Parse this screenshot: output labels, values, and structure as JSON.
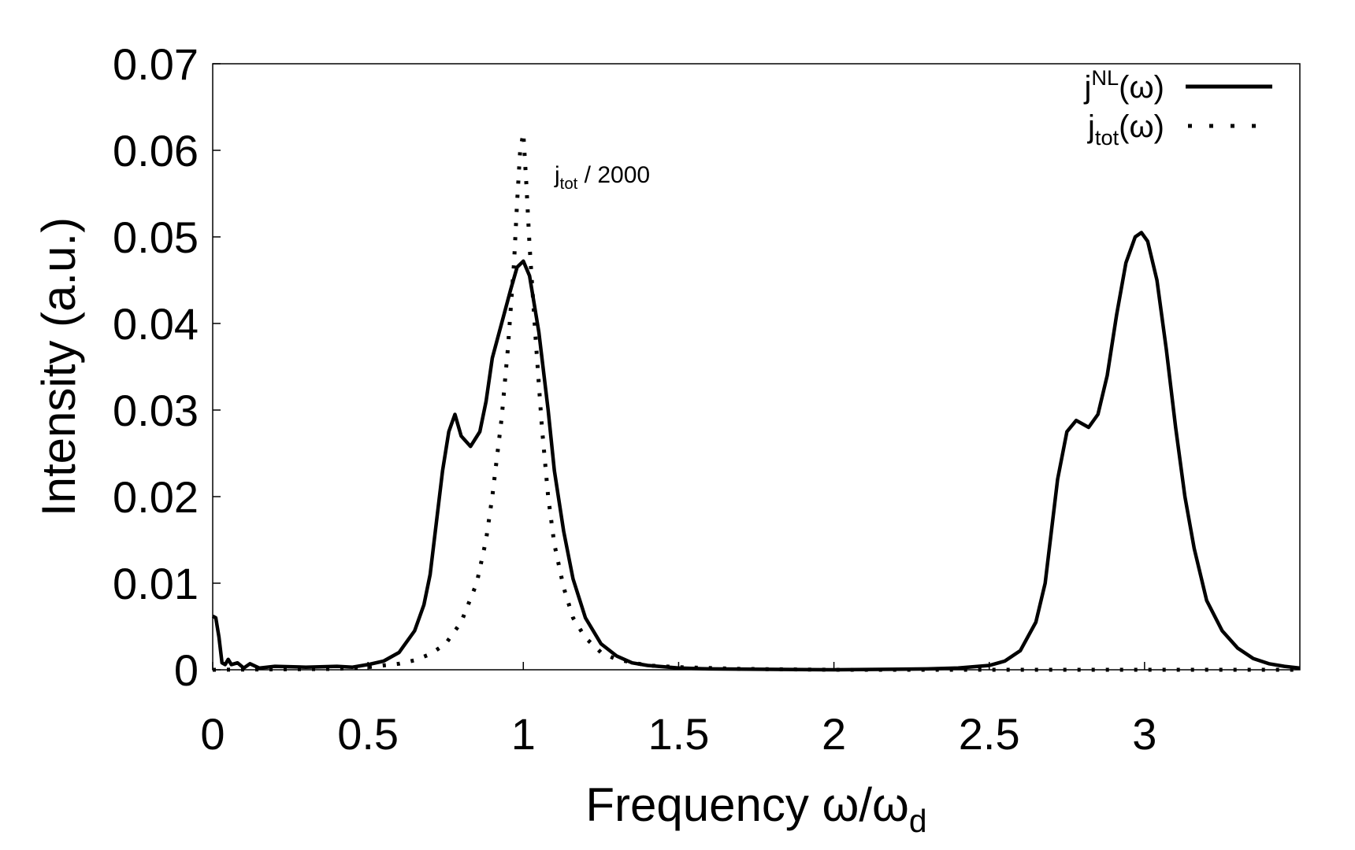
{
  "chart_data": {
    "type": "line",
    "xlabel": {
      "main": "Frequency ω/ω",
      "sub": "d"
    },
    "ylabel": "Intensity (a.u.)",
    "xlim": [
      0,
      3.5
    ],
    "ylim": [
      0,
      0.07
    ],
    "xticks": [
      0,
      0.5,
      1,
      1.5,
      2,
      2.5,
      3
    ],
    "xtick_labels": [
      "0",
      "0.5",
      "1",
      "1.5",
      "2",
      "2.5",
      "3"
    ],
    "yticks": [
      0,
      0.01,
      0.02,
      0.03,
      0.04,
      0.05,
      0.06,
      0.07
    ],
    "ytick_labels": [
      "0",
      "0.01",
      "0.02",
      "0.03",
      "0.04",
      "0.05",
      "0.06",
      "0.07"
    ],
    "grid": false,
    "legend_position": "top-right",
    "annotation": {
      "main": "j",
      "sub": "tot",
      "rest": " / 2000"
    },
    "series": [
      {
        "legend": {
          "main": "j",
          "sup": "NL",
          "rest": "(ω)"
        },
        "style": "solid",
        "color": "#000000",
        "points": [
          [
            0,
            0.0062
          ],
          [
            0.01,
            0.006
          ],
          [
            0.02,
            0.0038
          ],
          [
            0.03,
            0.0008
          ],
          [
            0.04,
            0.0006
          ],
          [
            0.05,
            0.0012
          ],
          [
            0.06,
            0.0006
          ],
          [
            0.08,
            0.0008
          ],
          [
            0.1,
            0.0002
          ],
          [
            0.12,
            0.0007
          ],
          [
            0.15,
            0.0002
          ],
          [
            0.2,
            0.0004
          ],
          [
            0.3,
            0.0003
          ],
          [
            0.4,
            0.0004
          ],
          [
            0.45,
            0.0003
          ],
          [
            0.5,
            0.0006
          ],
          [
            0.55,
            0.001
          ],
          [
            0.6,
            0.002
          ],
          [
            0.65,
            0.0045
          ],
          [
            0.68,
            0.0075
          ],
          [
            0.7,
            0.011
          ],
          [
            0.72,
            0.017
          ],
          [
            0.74,
            0.023
          ],
          [
            0.76,
            0.0275
          ],
          [
            0.78,
            0.0295
          ],
          [
            0.8,
            0.027
          ],
          [
            0.83,
            0.0258
          ],
          [
            0.86,
            0.0275
          ],
          [
            0.88,
            0.031
          ],
          [
            0.9,
            0.036
          ],
          [
            0.93,
            0.04
          ],
          [
            0.96,
            0.044
          ],
          [
            0.98,
            0.0465
          ],
          [
            1.0,
            0.0472
          ],
          [
            1.02,
            0.0455
          ],
          [
            1.05,
            0.039
          ],
          [
            1.08,
            0.03
          ],
          [
            1.1,
            0.023
          ],
          [
            1.13,
            0.016
          ],
          [
            1.16,
            0.0105
          ],
          [
            1.2,
            0.006
          ],
          [
            1.25,
            0.003
          ],
          [
            1.3,
            0.0016
          ],
          [
            1.35,
            0.0008
          ],
          [
            1.4,
            0.0005
          ],
          [
            1.5,
            0.0002
          ],
          [
            1.6,
            0.0001
          ],
          [
            2.0,
            0.0
          ],
          [
            2.3,
            0.0001
          ],
          [
            2.4,
            0.0002
          ],
          [
            2.5,
            0.0005
          ],
          [
            2.55,
            0.001
          ],
          [
            2.6,
            0.0022
          ],
          [
            2.65,
            0.0055
          ],
          [
            2.68,
            0.01
          ],
          [
            2.7,
            0.016
          ],
          [
            2.72,
            0.022
          ],
          [
            2.75,
            0.0275
          ],
          [
            2.78,
            0.0288
          ],
          [
            2.82,
            0.028
          ],
          [
            2.85,
            0.0295
          ],
          [
            2.88,
            0.034
          ],
          [
            2.91,
            0.041
          ],
          [
            2.94,
            0.047
          ],
          [
            2.97,
            0.05
          ],
          [
            2.99,
            0.0505
          ],
          [
            3.01,
            0.0495
          ],
          [
            3.04,
            0.045
          ],
          [
            3.07,
            0.037
          ],
          [
            3.1,
            0.028
          ],
          [
            3.13,
            0.02
          ],
          [
            3.16,
            0.014
          ],
          [
            3.2,
            0.008
          ],
          [
            3.25,
            0.0045
          ],
          [
            3.3,
            0.0025
          ],
          [
            3.35,
            0.0013
          ],
          [
            3.4,
            0.0007
          ],
          [
            3.45,
            0.0004
          ],
          [
            3.5,
            0.0002
          ]
        ]
      },
      {
        "legend": {
          "main": "j",
          "sub": "tot",
          "rest": "(ω)"
        },
        "style": "dotted",
        "color": "#000000",
        "points": [
          [
            0,
            0.0
          ],
          [
            0.4,
            0.0001
          ],
          [
            0.5,
            0.0003
          ],
          [
            0.6,
            0.0007
          ],
          [
            0.65,
            0.0011
          ],
          [
            0.7,
            0.0018
          ],
          [
            0.75,
            0.003
          ],
          [
            0.8,
            0.0055
          ],
          [
            0.85,
            0.01
          ],
          [
            0.88,
            0.015
          ],
          [
            0.9,
            0.02
          ],
          [
            0.93,
            0.029
          ],
          [
            0.95,
            0.037
          ],
          [
            0.97,
            0.047
          ],
          [
            0.98,
            0.054
          ],
          [
            0.99,
            0.06
          ],
          [
            1.0,
            0.062
          ],
          [
            1.01,
            0.056
          ],
          [
            1.02,
            0.049
          ],
          [
            1.04,
            0.038
          ],
          [
            1.06,
            0.028
          ],
          [
            1.08,
            0.02
          ],
          [
            1.1,
            0.0145
          ],
          [
            1.13,
            0.0095
          ],
          [
            1.16,
            0.006
          ],
          [
            1.2,
            0.0037
          ],
          [
            1.25,
            0.002
          ],
          [
            1.3,
            0.0012
          ],
          [
            1.4,
            0.0005
          ],
          [
            1.5,
            0.0003
          ],
          [
            1.7,
            0.0001
          ],
          [
            2.0,
            0.0
          ],
          [
            3.5,
            0.0
          ]
        ]
      }
    ]
  }
}
